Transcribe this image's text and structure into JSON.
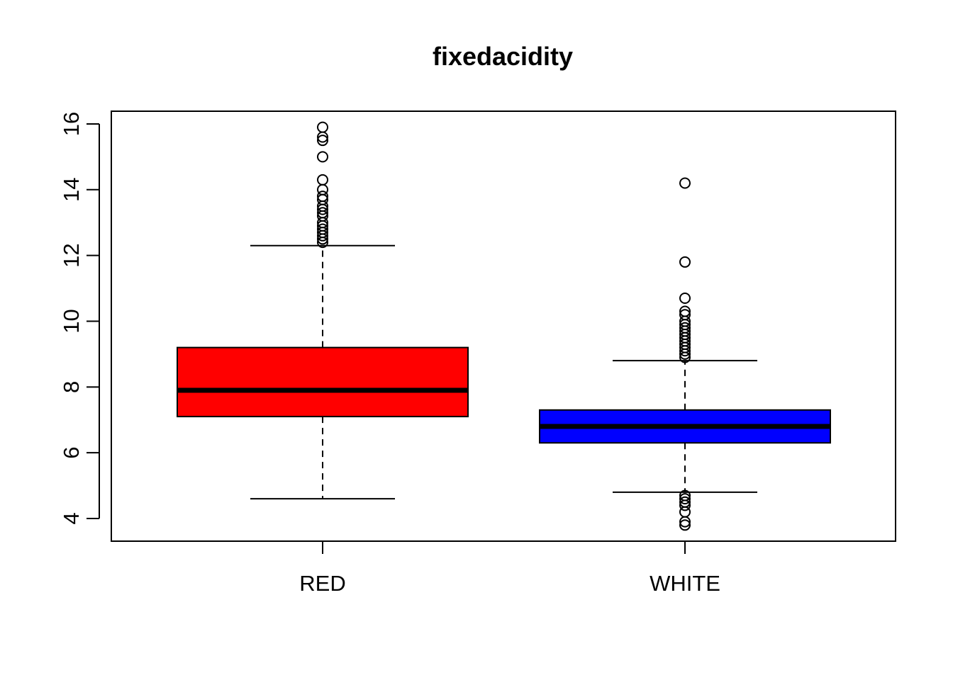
{
  "chart_data": {
    "type": "box",
    "title": "fixedacidity",
    "xlabel": "",
    "ylabel": "",
    "ylim": [
      3.4,
      16.4
    ],
    "yticks": [
      4,
      6,
      8,
      10,
      12,
      14,
      16
    ],
    "ytick_labels": [
      "4",
      "6",
      "8",
      "10",
      "12",
      "14",
      "16"
    ],
    "grid": false,
    "categories": [
      "RED",
      "WHITE"
    ],
    "boxes": [
      {
        "category": "RED",
        "color": "#ff0000",
        "whisker_low": 4.6,
        "q1": 7.1,
        "median": 7.9,
        "q3": 9.2,
        "whisker_high": 12.3,
        "outliers": [
          12.4,
          12.5,
          12.6,
          12.7,
          12.8,
          12.9,
          13.0,
          13.2,
          13.3,
          13.4,
          13.5,
          13.7,
          13.8,
          14.0,
          14.3,
          15.0,
          15.5,
          15.6,
          15.9
        ]
      },
      {
        "category": "WHITE",
        "color": "#0000ff",
        "whisker_low": 4.8,
        "q1": 6.3,
        "median": 6.8,
        "q3": 7.3,
        "whisker_high": 8.8,
        "outliers": [
          3.8,
          3.9,
          4.2,
          4.4,
          4.5,
          4.6,
          4.7,
          8.9,
          9.0,
          9.1,
          9.2,
          9.3,
          9.4,
          9.5,
          9.6,
          9.7,
          9.8,
          9.9,
          10.0,
          10.2,
          10.3,
          10.7,
          11.8,
          14.2
        ]
      }
    ]
  }
}
